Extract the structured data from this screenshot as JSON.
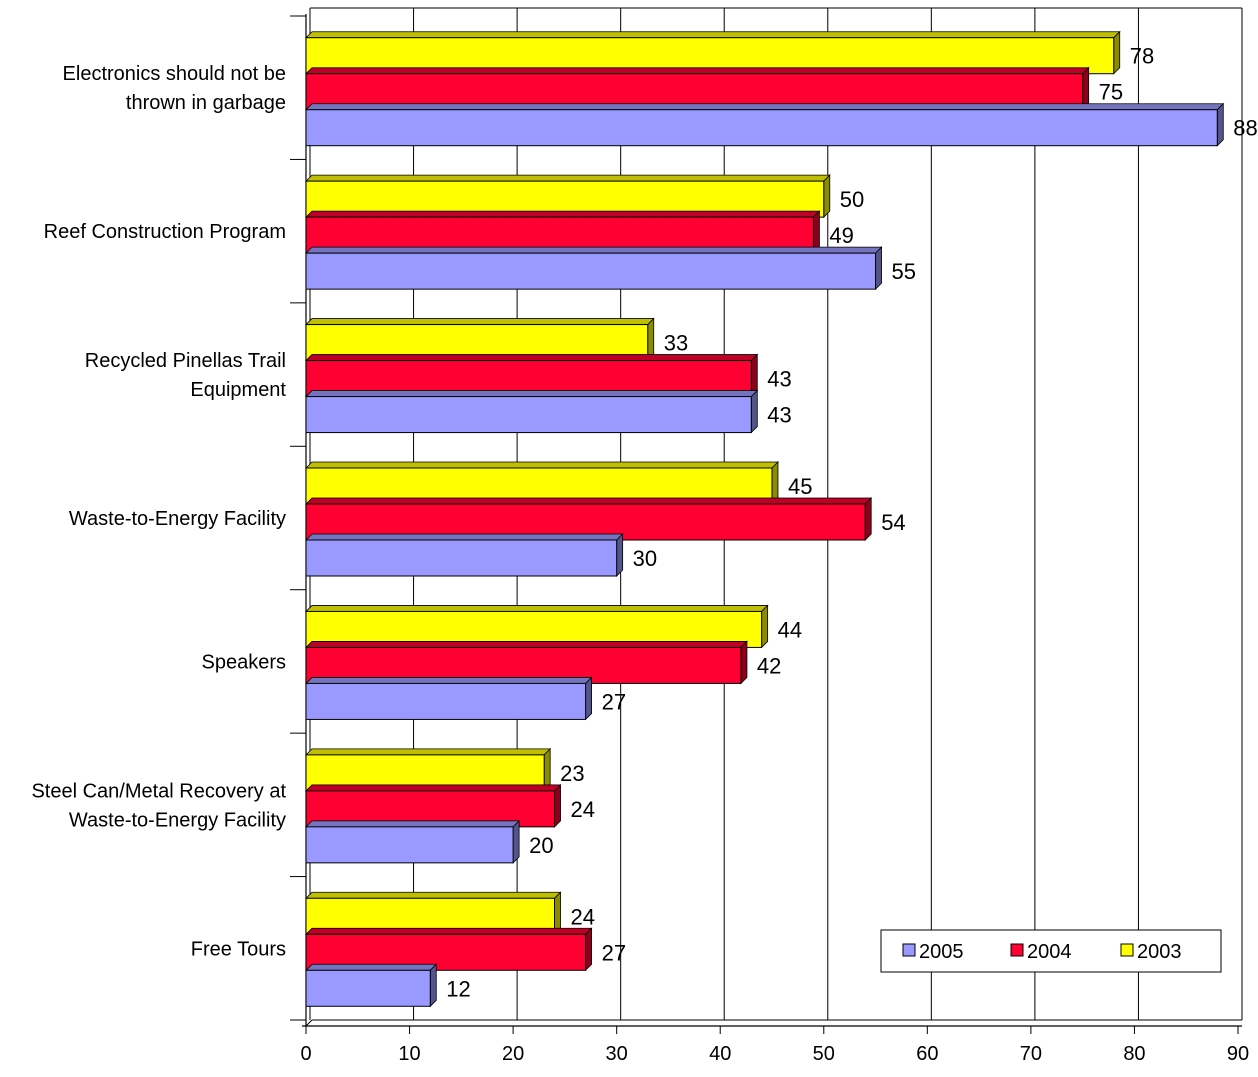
{
  "chart_data": {
    "type": "bar",
    "orientation": "horizontal",
    "style": "3d",
    "title": "",
    "xlabel": "",
    "ylabel": "",
    "xlim": [
      0,
      90
    ],
    "x_ticks": [
      0,
      10,
      20,
      30,
      40,
      50,
      60,
      70,
      80,
      90
    ],
    "grid": "vertical",
    "legend_position": "bottom-right",
    "categories": [
      [
        "Electronics should not be",
        "thrown in garbage"
      ],
      [
        "Reef Construction Program"
      ],
      [
        "Recycled Pinellas Trail",
        "Equipment"
      ],
      [
        "Waste-to-Energy Facility"
      ],
      [
        "Speakers"
      ],
      [
        "Steel Can/Metal Recovery at",
        "Waste-to-Energy Facility"
      ],
      [
        "Free Tours"
      ]
    ],
    "series": [
      {
        "name": "2005",
        "color": "#9999ff",
        "values": [
          88,
          55,
          43,
          30,
          27,
          20,
          12
        ]
      },
      {
        "name": "2004",
        "color": "#ff0033",
        "values": [
          75,
          49,
          43,
          54,
          42,
          24,
          27
        ]
      },
      {
        "name": "2003",
        "color": "#ffff00",
        "values": [
          78,
          50,
          33,
          45,
          44,
          23,
          24
        ]
      }
    ]
  }
}
